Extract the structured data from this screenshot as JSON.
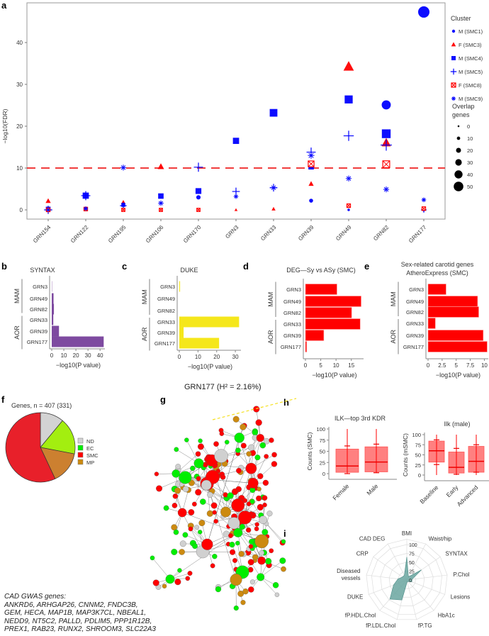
{
  "panel_labels": [
    "a",
    "b",
    "c",
    "d",
    "e",
    "f",
    "g",
    "h",
    "i"
  ],
  "colors": {
    "blue": "#0000ff",
    "red": "#ff0000",
    "purple": "#7e4aa0",
    "yellow": "#f5e71b",
    "teal": "#6aa6a0",
    "box": "#ff7b7b"
  },
  "chart_data": [
    {
      "id": "a",
      "type": "scatter",
      "ylabel": "−log10(FDR)",
      "ylim": [
        -2,
        49
      ],
      "yticks": [
        0,
        10,
        20,
        30,
        40
      ],
      "threshold": 10,
      "categories": [
        "GRN154",
        "GRN122",
        "GRN195",
        "GRN106",
        "GRN170",
        "GRN3",
        "GRN33",
        "GRN39",
        "GRN49",
        "GRN82",
        "GRN177"
      ],
      "legend_title": "Cluster",
      "size_legend_title": [
        "Overlap",
        "genes"
      ],
      "size_legend": [
        0,
        10,
        20,
        30,
        40,
        50
      ],
      "series": [
        {
          "name": "M (SMC1)",
          "marker": "circle",
          "color": "#0000ff",
          "points": [
            [
              "GRN154",
              0,
              5
            ],
            [
              "GRN122",
              0.2,
              3
            ],
            [
              "GRN106",
              0,
              2
            ],
            [
              "GRN170",
              3.0,
              12
            ],
            [
              "GRN170",
              0,
              2
            ],
            [
              "GRN39",
              2.2,
              10
            ],
            [
              "GRN49",
              0,
              2
            ],
            [
              "GRN82",
              25.1,
              38
            ],
            [
              "GRN177",
              47.3,
              50
            ],
            [
              "GRN177",
              0,
              5
            ]
          ]
        },
        {
          "name": "F (SMC3)",
          "marker": "triangle",
          "color": "#ff0000",
          "points": [
            [
              "GRN154",
              2.1,
              14
            ],
            [
              "GRN195",
              1.8,
              10
            ],
            [
              "GRN106",
              10.3,
              20
            ],
            [
              "GRN3",
              0,
              4
            ],
            [
              "GRN33",
              0.2,
              8
            ],
            [
              "GRN39",
              6.2,
              14
            ],
            [
              "GRN49",
              34.2,
              40
            ],
            [
              "GRN82",
              16,
              34
            ]
          ]
        },
        {
          "name": "M (SMC4)",
          "marker": "square",
          "color": "#0000ff",
          "points": [
            [
              "GRN154",
              0.2,
              14
            ],
            [
              "GRN122",
              3.4,
              22
            ],
            [
              "GRN195",
              1.2,
              10
            ],
            [
              "GRN106",
              3.3,
              18
            ],
            [
              "GRN170",
              4.5,
              20
            ],
            [
              "GRN3",
              16.5,
              22
            ],
            [
              "GRN33",
              23.2,
              30
            ],
            [
              "GRN39",
              10.3,
              18
            ],
            [
              "GRN49",
              26.4,
              32
            ],
            [
              "GRN82",
              18.2,
              36
            ]
          ]
        },
        {
          "name": "M (SMC5)",
          "marker": "plus",
          "color": "#0000ff",
          "points": [
            [
              "GRN154",
              0,
              20
            ],
            [
              "GRN122",
              3.4,
              24
            ],
            [
              "GRN195",
              1.0,
              14
            ],
            [
              "GRN170",
              10.2,
              24
            ],
            [
              "GRN3",
              4.4,
              18
            ],
            [
              "GRN33",
              5.3,
              18
            ],
            [
              "GRN39",
              13.8,
              24
            ],
            [
              "GRN49",
              17.7,
              28
            ],
            [
              "GRN82",
              15.5,
              32
            ],
            [
              "GRN177",
              0,
              10
            ]
          ]
        },
        {
          "name": "F (SMC8)",
          "marker": "boxx",
          "color": "#ff0000",
          "points": [
            [
              "GRN154",
              0,
              8
            ],
            [
              "GRN122",
              0.2,
              8
            ],
            [
              "GRN195",
              0,
              6
            ],
            [
              "GRN106",
              0,
              6
            ],
            [
              "GRN170",
              0,
              6
            ],
            [
              "GRN39",
              11,
              20
            ],
            [
              "GRN49",
              1.0,
              8
            ],
            [
              "GRN82",
              10.9,
              26
            ],
            [
              "GRN177",
              0.3,
              8
            ]
          ]
        },
        {
          "name": "M (SMC9)",
          "marker": "asterisk",
          "color": "#0000ff",
          "points": [
            [
              "GRN154",
              0,
              8
            ],
            [
              "GRN122",
              0.3,
              12
            ],
            [
              "GRN195",
              10.1,
              20
            ],
            [
              "GRN106",
              1.6,
              18
            ],
            [
              "GRN3",
              3.2,
              14
            ],
            [
              "GRN33",
              5.3,
              20
            ],
            [
              "GRN39",
              13,
              24
            ],
            [
              "GRN49",
              7.5,
              20
            ],
            [
              "GRN82",
              4.9,
              20
            ],
            [
              "GRN177",
              2.4,
              14
            ]
          ]
        }
      ]
    },
    {
      "id": "b",
      "type": "bar",
      "title": "SYNTAX",
      "color": "#7e4aa0",
      "groups": [
        "MAM",
        "AOR"
      ],
      "categories": [
        "GRN3",
        "GRN49",
        "GRN82",
        "GRN33",
        "GRN39",
        "GRN177"
      ],
      "values": [
        0.2,
        1.5,
        1.8,
        1.3,
        6,
        43
      ],
      "xlim": [
        0,
        44
      ],
      "xticks": [
        0,
        10,
        20,
        30,
        40
      ],
      "xlabel": "−log10(P value)"
    },
    {
      "id": "c",
      "type": "bar",
      "title": "DUKE",
      "color": "#f5e71b",
      "groups": [
        "MAM",
        "AOR"
      ],
      "categories": [
        "GRN3",
        "GRN49",
        "GRN82",
        "GRN33",
        "GRN39",
        "GRN177"
      ],
      "values": [
        0.4,
        0,
        0,
        32,
        2.3,
        21.3
      ],
      "xlim": [
        0,
        33
      ],
      "xticks": [
        0,
        10,
        20,
        30
      ],
      "xlabel": "−log10(P value)"
    },
    {
      "id": "d",
      "type": "bar",
      "title": "DEG—Sy vs ASy (SMC)",
      "color": "#ff0000",
      "groups": [
        "MAM",
        "AOR"
      ],
      "categories": [
        "GRN3",
        "GRN49",
        "GRN82",
        "GRN33",
        "GRN39",
        "GRN177"
      ],
      "values": [
        10.3,
        18.2,
        15.1,
        17.9,
        6,
        0.4
      ],
      "xlim": [
        0,
        19
      ],
      "xticks": [
        0,
        5,
        10,
        15
      ],
      "xlabel": "−log10(P value)"
    },
    {
      "id": "e",
      "type": "bar",
      "title": "Sex-related carotid genes",
      "subtitle": "AtheroExpress (SMC)",
      "color": "#ff0000",
      "groups": [
        "MAM",
        "AOR"
      ],
      "categories": [
        "GRN3",
        "GRN49",
        "GRN82",
        "GRN33",
        "GRN39",
        "GRN177"
      ],
      "values": [
        3.2,
        8.8,
        9,
        1.3,
        9.8,
        10.5
      ],
      "xlim": [
        0,
        10.7
      ],
      "xticks": [
        0,
        2.5,
        5,
        7.5,
        10
      ],
      "xlabel": "−log10(P value)"
    },
    {
      "id": "f",
      "type": "pie",
      "title": "Genes, n = 407 (331)",
      "labels": [
        "ND",
        "EC",
        "MP",
        "SMC"
      ],
      "values": [
        11,
        17,
        15,
        57
      ],
      "colors": [
        "#d3d3d3",
        "#a3ee10",
        "#cc8030",
        "#e8202a"
      ],
      "legend": [
        "ND",
        "EC",
        "SMC",
        "MP"
      ],
      "legend_colors": [
        "#d3d3d3",
        "#00ee00",
        "#ff0000",
        "#cc8a10"
      ]
    },
    {
      "id": "h1",
      "type": "box",
      "title": "ILK—top 3rd KDR",
      "ylabel": "Counts (SMC)",
      "ylim": [
        0,
        100
      ],
      "yticks": [
        0,
        25,
        50,
        75,
        100
      ],
      "categories": [
        "Female",
        "Male"
      ],
      "boxes": [
        {
          "q1": 3,
          "median": 17,
          "q3": 55,
          "min": 0,
          "max": 100,
          "lo": 0,
          "hi": 62
        },
        {
          "q1": 4,
          "median": 26,
          "q3": 60,
          "min": 2,
          "max": 100,
          "lo": 2,
          "hi": 66
        }
      ]
    },
    {
      "id": "h2",
      "type": "box",
      "title": "Ilk (male)",
      "ylabel": "Counts (mSMC)",
      "ylim": [
        0,
        100
      ],
      "yticks": [
        0,
        25,
        50,
        75,
        100
      ],
      "categories": [
        "Baseline",
        "Early",
        "Advanced"
      ],
      "boxes": [
        {
          "q1": 32,
          "median": 60,
          "q3": 84,
          "min": 0,
          "max": 100,
          "lo": 26,
          "hi": 87
        },
        {
          "q1": 5,
          "median": 19,
          "q3": 57,
          "min": 0,
          "max": 100,
          "lo": 2,
          "hi": 66
        },
        {
          "q1": 7,
          "median": 34,
          "q3": 71,
          "min": 0,
          "max": 100,
          "lo": 7,
          "hi": 75
        }
      ]
    },
    {
      "id": "i",
      "type": "radar",
      "axes": [
        "BMI",
        "Waist/hip",
        "SYNTAX",
        "P.Chol",
        "Lesions",
        "HbA1c",
        "fP.TG",
        "fP.LDL.Chol",
        "fP.HDL.Chol",
        "DUKE",
        "Diseased vessels",
        "CRP",
        "CAD DEG"
      ],
      "values": [
        65,
        10,
        50,
        15,
        15,
        6,
        5,
        58,
        72,
        40,
        25,
        15,
        15
      ],
      "rticks": [
        0,
        25,
        50,
        75,
        100
      ],
      "color": "#6aa6a0"
    }
  ],
  "network": {
    "title": "GRN177 (H² = 2.16%)"
  },
  "caption": {
    "heading": "CAD GWAS genes:",
    "lines": [
      "ANKRD6, ARHGAP26,  CNNM2,  FNDC3B,",
      "GEM,  HECA, MAP1B, MAP3K7CL, NBEAL1,",
      "NEDD9, NT5C2, PALLD, PDLIM5, PPP1R12B,",
      "PREX1, RAB23, RUNX2,  SHROOM3, SLC22A3"
    ]
  }
}
